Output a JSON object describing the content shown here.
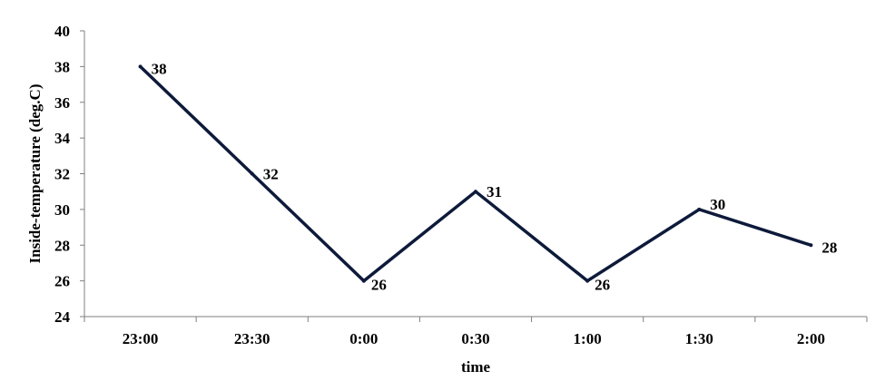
{
  "chart_data": {
    "type": "line",
    "title": "",
    "xlabel": "time",
    "ylabel": "Inside-temperature (deg.C)",
    "categories": [
      "23:00",
      "23:30",
      "0:00",
      "0:30",
      "1:00",
      "1:30",
      "2:00"
    ],
    "series": [
      {
        "values": [
          38,
          32,
          26,
          31,
          26,
          30,
          28
        ],
        "data_labels": [
          "38",
          "32",
          "26",
          "31",
          "26",
          "30",
          "28"
        ],
        "color": "#0d1a3a"
      }
    ],
    "ylim": [
      24,
      40
    ],
    "yticks": [
      24,
      26,
      28,
      30,
      32,
      34,
      36,
      38,
      40
    ],
    "ytick_labels": [
      "24",
      "26",
      "28",
      "30",
      "32",
      "34",
      "36",
      "38",
      "40"
    ],
    "grid": false,
    "legend": "none"
  }
}
